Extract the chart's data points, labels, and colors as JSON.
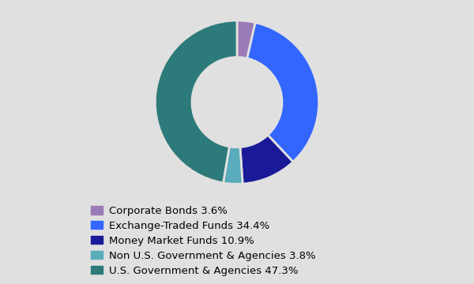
{
  "labels": [
    "Corporate Bonds 3.6%",
    "Exchange-Traded Funds 34.4%",
    "Money Market Funds 10.9%",
    "Non U.S. Government & Agencies 3.8%",
    "U.S. Government & Agencies 47.3%"
  ],
  "values": [
    3.6,
    34.4,
    10.9,
    3.8,
    47.3
  ],
  "colors": [
    "#9b7bb5",
    "#3366ff",
    "#1a1a99",
    "#5aabbb",
    "#2d7a7a"
  ],
  "background_color": "#e0e0e0",
  "wedge_edge_color": "#e0e0e0",
  "donut_width": 0.45,
  "startangle": 90,
  "legend_fontsize": 9.5
}
